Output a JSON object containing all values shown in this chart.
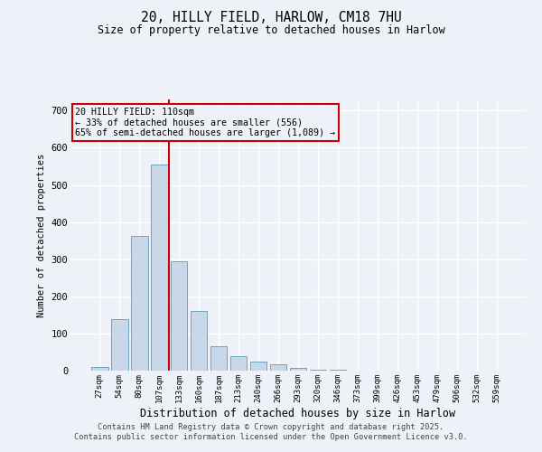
{
  "title_line1": "20, HILLY FIELD, HARLOW, CM18 7HU",
  "title_line2": "Size of property relative to detached houses in Harlow",
  "xlabel": "Distribution of detached houses by size in Harlow",
  "ylabel": "Number of detached properties",
  "categories": [
    "27sqm",
    "54sqm",
    "80sqm",
    "107sqm",
    "133sqm",
    "160sqm",
    "187sqm",
    "213sqm",
    "240sqm",
    "266sqm",
    "293sqm",
    "320sqm",
    "346sqm",
    "373sqm",
    "399sqm",
    "426sqm",
    "453sqm",
    "479sqm",
    "506sqm",
    "532sqm",
    "559sqm"
  ],
  "values": [
    10,
    138,
    362,
    556,
    295,
    160,
    65,
    38,
    25,
    18,
    8,
    3,
    2,
    1,
    0,
    0,
    0,
    0,
    0,
    0,
    0
  ],
  "bar_color": "#c8d8e8",
  "bar_edge_color": "#5b9ab8",
  "highlight_bar_idx": 3,
  "highlight_color": "#cc0000",
  "annotation_text": "20 HILLY FIELD: 110sqm\n← 33% of detached houses are smaller (556)\n65% of semi-detached houses are larger (1,089) →",
  "annotation_box_color": "#cc0000",
  "bg_color": "#eef2f8",
  "grid_color": "#ffffff",
  "footer_text": "Contains HM Land Registry data © Crown copyright and database right 2025.\nContains public sector information licensed under the Open Government Licence v3.0.",
  "ylim": [
    0,
    730
  ],
  "yticks": [
    0,
    100,
    200,
    300,
    400,
    500,
    600,
    700
  ]
}
